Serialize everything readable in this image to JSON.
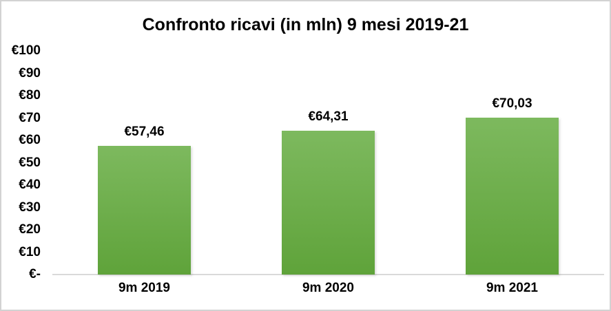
{
  "chart_data": {
    "type": "bar",
    "title": "Confronto ricavi (in mln) 9 mesi 2019-21",
    "categories": [
      "9m 2019",
      "9m 2020",
      "9m 2021"
    ],
    "values": [
      57.46,
      64.31,
      70.03
    ],
    "data_labels": [
      "€57,46",
      "€64,31",
      "€70,03"
    ],
    "ylabel": "",
    "xlabel": "",
    "ylim": [
      0,
      100
    ],
    "y_tick_values": [
      100,
      90,
      80,
      70,
      60,
      50,
      40,
      30,
      20,
      10,
      0
    ],
    "y_tick_labels": [
      "€100",
      "€90",
      "€80",
      "€70",
      "€60",
      "€50",
      "€40",
      "€30",
      "€20",
      "€10",
      "€-"
    ],
    "grid": false,
    "legend": "none",
    "colors": {
      "bar_gradient_top": "#7db95e",
      "bar_gradient_bottom": "#5fa33a",
      "axis_line": "#d9d9d9",
      "text": "#000000",
      "background": "#ffffff",
      "chart_border": "#d2d2d2"
    }
  }
}
